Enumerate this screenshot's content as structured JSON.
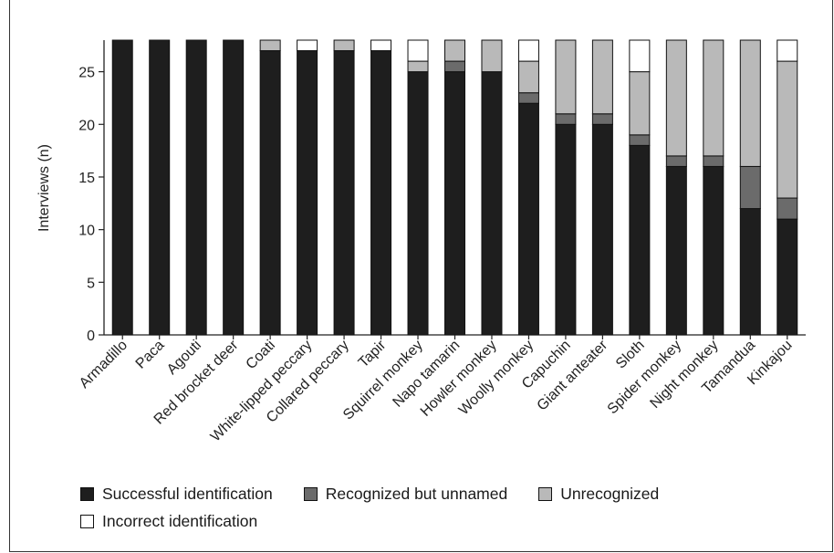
{
  "chart_data": {
    "type": "bar",
    "stacked": true,
    "ylabel": "Interviews (n)",
    "xlabel": "",
    "ylim": [
      0,
      28
    ],
    "yticks": [
      0,
      5,
      10,
      15,
      20,
      25
    ],
    "categories": [
      "Armadillo",
      "Paca",
      "Agouti",
      "Red brocket deer",
      "Coati",
      "White-lipped peccary",
      "Collared peccary",
      "Tapir",
      "Squirrel monkey",
      "Napo tamarin",
      "Howler monkey",
      "Woolly monkey",
      "Capuchin",
      "Giant anteater",
      "Sloth",
      "Spider monkey",
      "Night monkey",
      "Tamandua",
      "Kinkajou"
    ],
    "series": [
      {
        "name": "Successful identification",
        "color": "#1e1e1e",
        "values": [
          28,
          28,
          28,
          28,
          27,
          27,
          27,
          27,
          25,
          25,
          25,
          22,
          20,
          20,
          18,
          16,
          16,
          12,
          11
        ]
      },
      {
        "name": "Recognized but unnamed",
        "color": "#6b6b6b",
        "values": [
          0,
          0,
          0,
          0,
          0,
          0,
          0,
          0,
          0,
          1,
          0,
          1,
          1,
          1,
          1,
          1,
          1,
          4,
          2
        ]
      },
      {
        "name": "Unrecognized",
        "color": "#b9b9b9",
        "values": [
          0,
          0,
          0,
          0,
          1,
          0,
          1,
          0,
          1,
          2,
          3,
          3,
          7,
          7,
          6,
          11,
          11,
          12,
          13
        ]
      },
      {
        "name": "Incorrect identification",
        "color": "#ffffff",
        "values": [
          0,
          0,
          0,
          0,
          0,
          1,
          0,
          1,
          2,
          0,
          0,
          2,
          0,
          0,
          3,
          0,
          0,
          0,
          2
        ]
      }
    ],
    "grid": false,
    "legend_position": "bottom"
  }
}
